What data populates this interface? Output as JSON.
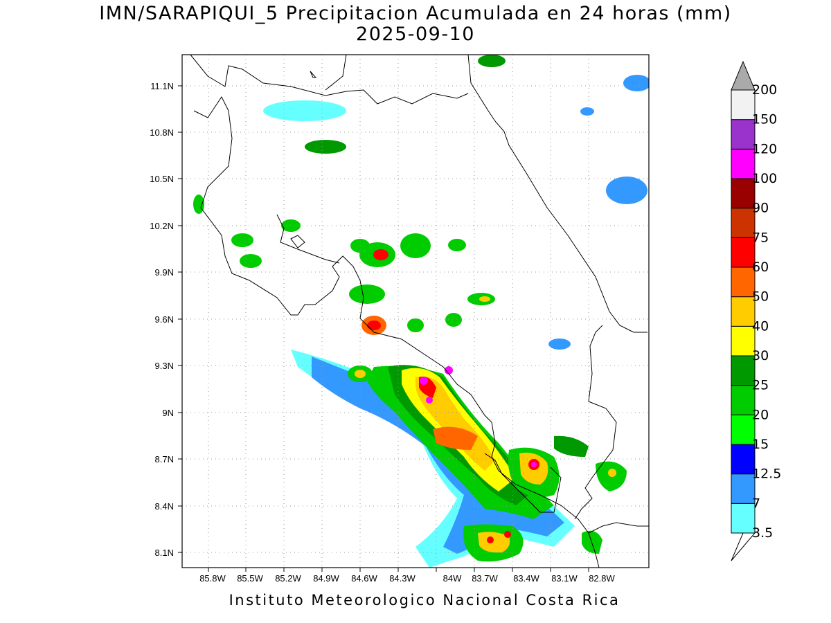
{
  "title": "IMN/SARAPIQUI_5 Precipitacion Acumulada en 24 horas (mm)",
  "date": "2025-09-10",
  "footer": "Instituto Meteorologico Nacional Costa Rica",
  "axes": {
    "x_ticks": [
      "85.8W",
      "85.5W",
      "85.2W",
      "84.9W",
      "84.6W",
      "84.3W",
      "84W",
      "83.7W",
      "83.4W",
      "83.1W",
      "82.8W"
    ],
    "y_ticks": [
      "11.1N",
      "10.8N",
      "10.5N",
      "10.2N",
      "9.9N",
      "9.6N",
      "9.3N",
      "9N",
      "8.7N",
      "8.4N",
      "8.1N"
    ]
  },
  "colorbar": {
    "labels": [
      "3.5",
      "7",
      "12.5",
      "15",
      "20",
      "25",
      "30",
      "40",
      "50",
      "60",
      "75",
      "90",
      "100",
      "120",
      "150",
      "200"
    ],
    "colors": [
      "#66ffff",
      "#3399ff",
      "#0000ff",
      "#00ff00",
      "#00cc00",
      "#009900",
      "#ffff00",
      "#ffcc00",
      "#ff6600",
      "#ff0000",
      "#cc3300",
      "#990000",
      "#ff00ff",
      "#9933cc",
      "#f2f2f2",
      "#aaaaaa"
    ],
    "under_color": "#ffffff",
    "over_color": "#aaaaaa"
  },
  "colors": {
    "land_border": "#000000",
    "grid": "#999999"
  }
}
